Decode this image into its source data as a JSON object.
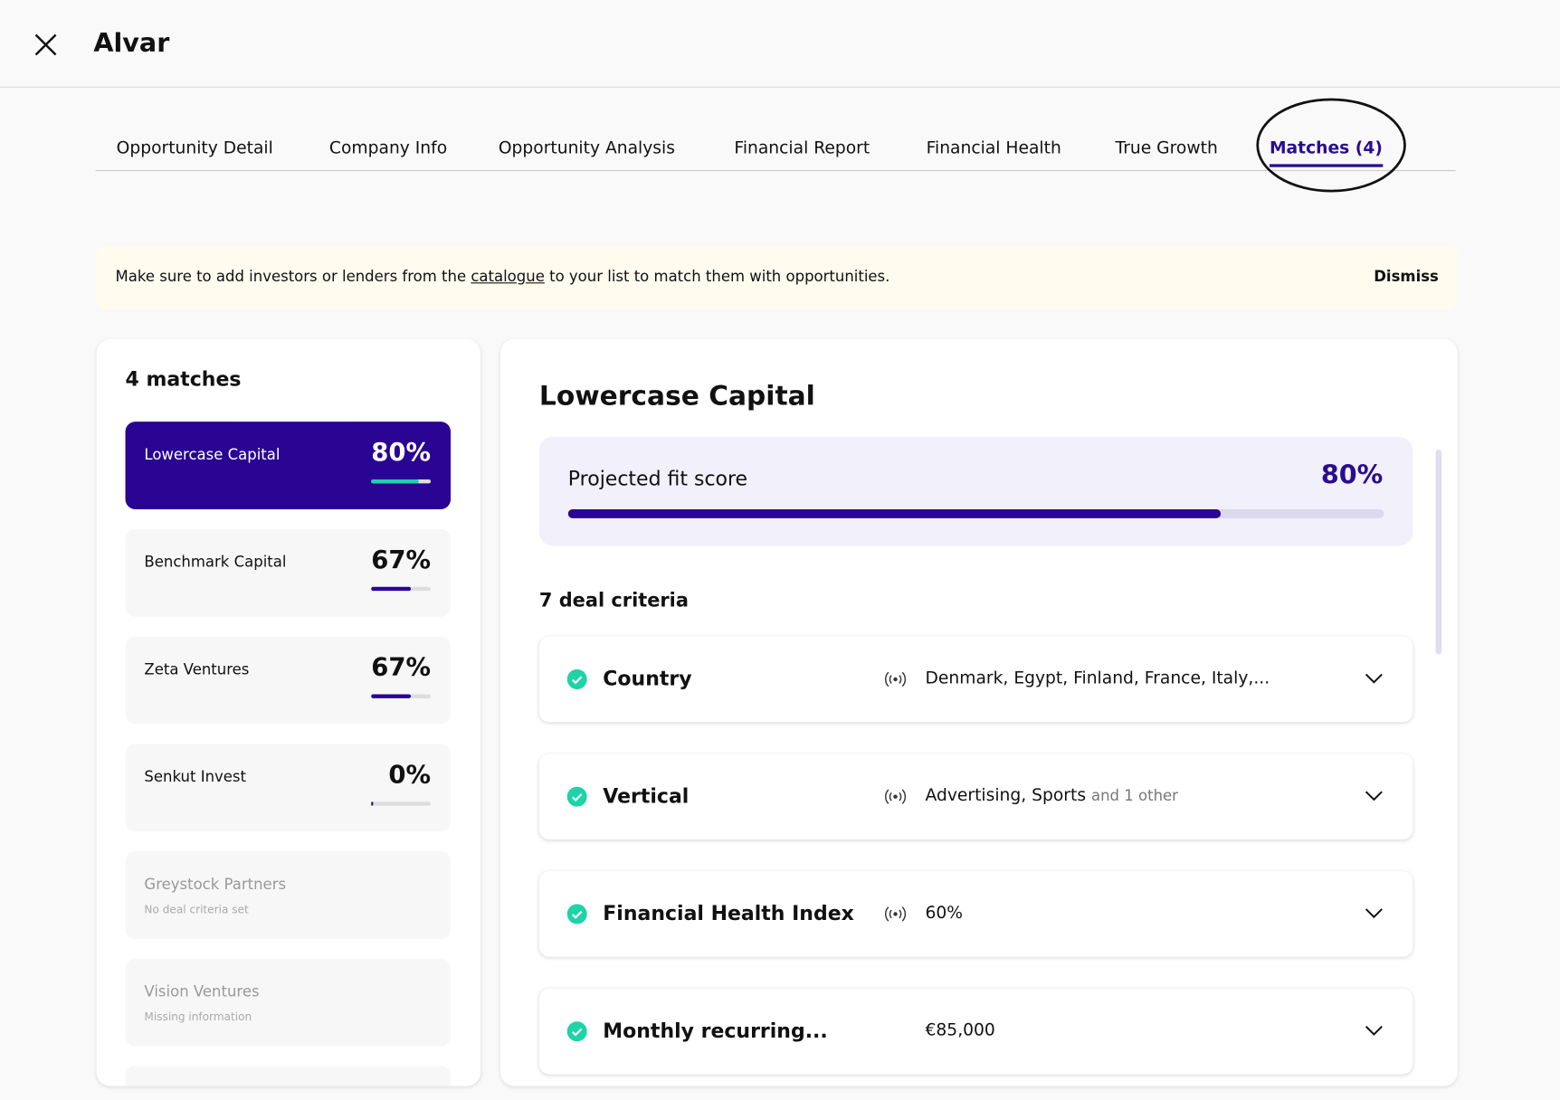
{
  "header": {
    "title": "Alvar"
  },
  "tabs": [
    "Opportunity Detail",
    "Company Info",
    "Opportunity Analysis",
    "Financial Report",
    "Financial Health",
    "True Growth",
    "Matches (4)"
  ],
  "banner": {
    "text_before": "Make sure to add investors or lenders from the",
    "link": "catalogue",
    "text_after": "to your list to match them with opportunities.",
    "action": "Dismiss"
  },
  "matches": {
    "heading": "4 matches",
    "items": [
      {
        "name": "Lowercase Capital",
        "score": 80,
        "score_label": "80%"
      },
      {
        "name": "Benchmark Capital",
        "score": 67,
        "score_label": "67%"
      },
      {
        "name": "Zeta Ventures",
        "score": 67,
        "score_label": "67%"
      },
      {
        "name": "Senkut Invest",
        "score": 0,
        "score_label": "0%"
      },
      {
        "name": "Greystock Partners",
        "note": "No deal criteria set"
      },
      {
        "name": "Vision Ventures",
        "note": "Missing information"
      }
    ]
  },
  "detail": {
    "title": "Lowercase Capital",
    "fit_label": "Projected fit score",
    "fit_score": 80,
    "fit_score_label": "80%",
    "criteria_heading": "7 deal criteria",
    "criteria": [
      {
        "name": "Country",
        "value": "Denmark, Egypt, Finland, France, Italy,..."
      },
      {
        "name": "Vertical",
        "value": "Advertising, Sports",
        "extra": "and 1 other"
      },
      {
        "name": "Financial Health Index",
        "value": "60%"
      },
      {
        "name": "Monthly recurring...",
        "value": "€85,000"
      }
    ]
  }
}
